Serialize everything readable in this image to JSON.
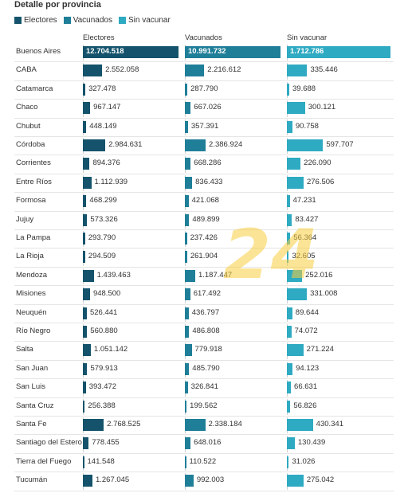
{
  "chart_data": {
    "type": "bar",
    "title": "Detalle por provincia",
    "legend_placement": "top-left",
    "colors": {
      "Electores": "#14536b",
      "Vacunados": "#1f7e98",
      "Sin vacunar": "#2eaac2"
    },
    "categories": [
      "Buenos Aires",
      "CABA",
      "Catamarca",
      "Chaco",
      "Chubut",
      "Córdoba",
      "Corrientes",
      "Entre Ríos",
      "Formosa",
      "Jujuy",
      "La Pampa",
      "La Rioja",
      "Mendoza",
      "Misiones",
      "Neuquén",
      "Río Negro",
      "Salta",
      "San Juan",
      "San Luis",
      "Santa Cruz",
      "Santa Fe",
      "Santiago del Estero",
      "Tierra del Fuego",
      "Tucumán"
    ],
    "series": [
      {
        "name": "Electores",
        "values": [
          12704518,
          2552058,
          327478,
          967147,
          448149,
          2984631,
          894376,
          1112939,
          468299,
          573326,
          293790,
          294509,
          1439463,
          948500,
          526441,
          560880,
          1051142,
          579913,
          393472,
          256388,
          2768525,
          778455,
          141548,
          1267045
        ],
        "labels": [
          "12.704.518",
          "2.552.058",
          "327.478",
          "967.147",
          "448.149",
          "2.984.631",
          "894.376",
          "1.112.939",
          "468.299",
          "573.326",
          "293.790",
          "294.509",
          "1.439.463",
          "948.500",
          "526.441",
          "560.880",
          "1.051.142",
          "579.913",
          "393.472",
          "256.388",
          "2.768.525",
          "778.455",
          "141.548",
          "1.267.045"
        ]
      },
      {
        "name": "Vacunados",
        "values": [
          10991732,
          2216612,
          287790,
          667026,
          357391,
          2386924,
          668286,
          836433,
          421068,
          489899,
          237426,
          261904,
          1187447,
          617492,
          436797,
          486808,
          779918,
          485790,
          326841,
          199562,
          2338184,
          648016,
          110522,
          992003
        ],
        "labels": [
          "10.991.732",
          "2.216.612",
          "287.790",
          "667.026",
          "357.391",
          "2.386.924",
          "668.286",
          "836.433",
          "421.068",
          "489.899",
          "237.426",
          "261.904",
          "1.187.447",
          "617.492",
          "436.797",
          "486.808",
          "779.918",
          "485.790",
          "326.841",
          "199.562",
          "2.338.184",
          "648.016",
          "110.522",
          "992.003"
        ]
      },
      {
        "name": "Sin vacunar",
        "values": [
          1712786,
          335446,
          39688,
          300121,
          90758,
          597707,
          226090,
          276506,
          47231,
          83427,
          56364,
          32605,
          252016,
          331008,
          89644,
          74072,
          271224,
          94123,
          66631,
          56826,
          430341,
          130439,
          31026,
          275042
        ],
        "labels": [
          "1.712.786",
          "335.446",
          "39.688",
          "300.121",
          "90.758",
          "597.707",
          "226.090",
          "276.506",
          "47.231",
          "83.427",
          "56.364",
          "32.605",
          "252.016",
          "331.008",
          "89.644",
          "74.072",
          "271.224",
          "94.123",
          "66.631",
          "56.826",
          "430.341",
          "130.439",
          "31.026",
          "275.042"
        ]
      }
    ]
  },
  "watermark": {
    "text": "24"
  }
}
